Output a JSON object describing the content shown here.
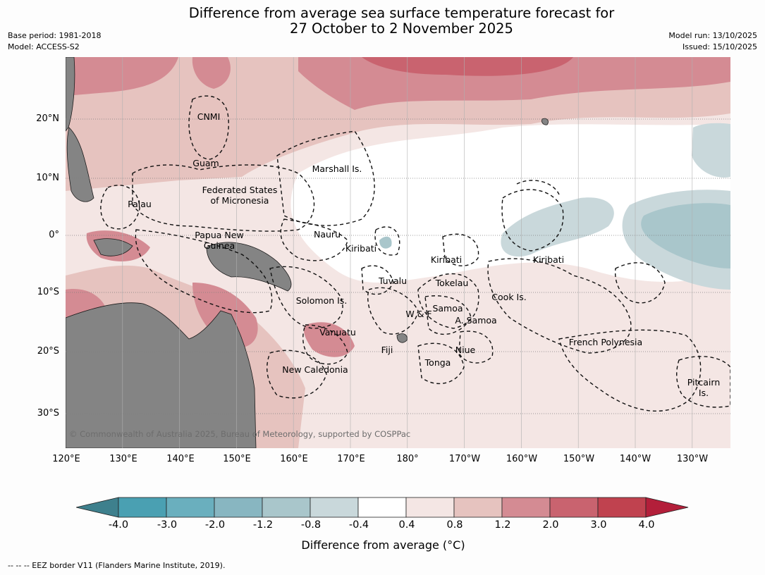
{
  "title": {
    "line1": "Difference from average sea surface temperature forecast for",
    "line2": "27 October to 2 November 2025"
  },
  "meta": {
    "base_period": "Base period: 1981-2018",
    "model": "Model: ACCESS-S2",
    "model_run": "Model run: 13/10/2025",
    "issued": "Issued: 15/10/2025"
  },
  "lat_labels": [
    "20°N",
    "10°N",
    "0°",
    "10°S",
    "20°S",
    "30°S"
  ],
  "lon_labels": [
    "120°E",
    "130°E",
    "140°E",
    "150°E",
    "160°E",
    "170°E",
    "180°",
    "170°W",
    "160°W",
    "150°W",
    "140°W",
    "130°W"
  ],
  "places": {
    "cnmi": "CNMI",
    "guam": "Guam",
    "marshall": "Marshall Is.",
    "fsm_1": "Federated States",
    "fsm_2": "of Micronesia",
    "palau": "Palau",
    "png_1": "Papua New",
    "png_2": "Guinea",
    "nauru": "Nauru",
    "kiribati_w": "Kiribati",
    "kiribati_c": "Kiribati",
    "kiribati_e": "Kiribati",
    "tuvalu": "Tuvalu",
    "tokelau": "Tokelau",
    "cook": "Cook Is.",
    "solomon": "Solomon Is.",
    "samoa": "Samoa",
    "wf": "W & F",
    "asamoa": "A. Samoa",
    "vanuatu": "Vanuatu",
    "fiji": "Fiji",
    "niue": "Niue",
    "frpoly": "French Polynesia",
    "tonga": "Tonga",
    "newcal": "New Caledonia",
    "pitcairn_1": "Pitcairn",
    "pitcairn_2": "Is."
  },
  "copyright": "© Commonwealth of Australia 2025, Bureau of Meteorology, supported by COSPPac",
  "colorbar": {
    "ticks": [
      "-4.0",
      "-3.0",
      "-2.0",
      "-1.2",
      "-0.8",
      "-0.4",
      "0.4",
      "0.8",
      "1.2",
      "2.0",
      "3.0",
      "4.0"
    ],
    "colors": [
      "#3e808d",
      "#4aa0b2",
      "#6aafbe",
      "#88b6c1",
      "#a9c6cb",
      "#c9d8db",
      "#ffffff",
      "#f4e6e4",
      "#e6c3bf",
      "#d48b93",
      "#c9636f",
      "#c0424f",
      "#b31f3a"
    ],
    "label": "Difference from average (°C)"
  },
  "footer": "-- -- -- EEZ border V11 (Flanders Marine Institute, 2019).",
  "legend_colors": {
    "land": "#848484",
    "coast": "#1a1a1a"
  }
}
